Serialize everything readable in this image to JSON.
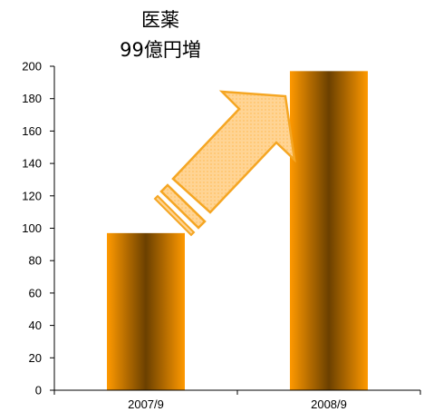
{
  "chart_data": {
    "type": "bar",
    "title_lines": [
      "医薬",
      "99億円増"
    ],
    "categories": [
      "2007/9",
      "2008/9"
    ],
    "values": [
      97,
      197
    ],
    "ylim": [
      0,
      200
    ],
    "yticks": [
      0,
      20,
      40,
      60,
      80,
      100,
      120,
      140,
      160,
      180,
      200
    ],
    "xlabel": "",
    "ylabel": "",
    "grid": false,
    "legend": "none",
    "colors": {
      "bar_edge": "#ff9900",
      "bar_center": "#6b4000",
      "arrow_fill": "#ffd494",
      "arrow_stroke": "#f5a623"
    }
  }
}
